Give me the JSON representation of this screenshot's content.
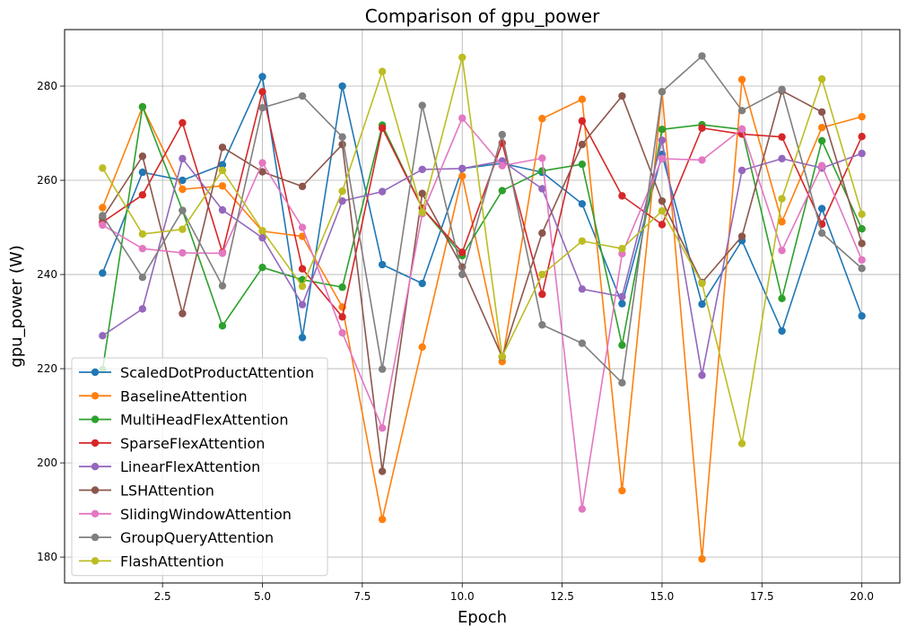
{
  "chart_data": {
    "type": "line",
    "title": "Comparison of gpu_power",
    "xlabel": "Epoch",
    "ylabel": "gpu_power (W)",
    "xlim": [
      0.05,
      20.95
    ],
    "ylim": [
      174.5,
      292
    ],
    "xticks": [
      "2.5",
      "5.0",
      "7.5",
      "10.0",
      "12.5",
      "15.0",
      "17.5",
      "20.0"
    ],
    "xtick_values": [
      2.5,
      5.0,
      7.5,
      10.0,
      12.5,
      15.0,
      17.5,
      20.0
    ],
    "yticks": [
      "180",
      "200",
      "220",
      "240",
      "260",
      "280"
    ],
    "ytick_values": [
      180,
      200,
      220,
      240,
      260,
      280
    ],
    "grid": true,
    "legend_position": "bottom-left",
    "x": [
      1,
      2,
      3,
      4,
      5,
      6,
      7,
      8,
      9,
      10,
      11,
      12,
      13,
      14,
      15,
      16,
      17,
      18,
      19,
      20
    ],
    "series": [
      {
        "name": "ScaledDotProductAttention",
        "color": "#1f77b4",
        "values": [
          240.3,
          261.7,
          260.0,
          263.3,
          282.0,
          226.6,
          280.0,
          242.1,
          238.1,
          262.5,
          263.6,
          261.7,
          255.0,
          233.8,
          265.5,
          233.7,
          247.2,
          228.0,
          254.0,
          231.2
        ]
      },
      {
        "name": "BaselineAttention",
        "color": "#ff7f0e",
        "values": [
          254.2,
          275.6,
          258.1,
          258.8,
          249.2,
          248.1,
          233.1,
          188.0,
          224.6,
          260.9,
          221.5,
          273.1,
          277.2,
          194.1,
          278.8,
          179.6,
          281.4,
          251.2,
          271.2,
          273.5
        ]
      },
      {
        "name": "MultiHeadFlexAttention",
        "color": "#2ca02c",
        "values": [
          219.8,
          275.6,
          253.6,
          229.1,
          241.5,
          238.9,
          237.3,
          271.7,
          254.1,
          244.0,
          257.8,
          262.0,
          263.4,
          225.0,
          270.8,
          271.8,
          270.8,
          234.9,
          268.4,
          249.7
        ]
      },
      {
        "name": "SparseFlexAttention",
        "color": "#d62728",
        "values": [
          251.1,
          256.9,
          272.2,
          244.7,
          278.8,
          241.2,
          231.0,
          271.1,
          254.1,
          244.7,
          267.9,
          235.8,
          272.6,
          256.7,
          250.6,
          271.1,
          269.8,
          269.2,
          250.7,
          269.3
        ]
      },
      {
        "name": "LinearFlexAttention",
        "color": "#9467bd",
        "values": [
          227.0,
          232.7,
          264.6,
          253.7,
          247.8,
          233.6,
          255.6,
          257.6,
          262.3,
          262.5,
          264.1,
          258.2,
          236.9,
          235.3,
          268.5,
          218.6,
          262.1,
          264.6,
          262.6,
          265.7
        ]
      },
      {
        "name": "LSHAttention",
        "color": "#8c564b",
        "values": [
          252.0,
          265.1,
          231.7,
          267.0,
          261.8,
          258.7,
          267.6,
          198.2,
          257.2,
          241.6,
          222.5,
          248.8,
          267.6,
          277.9,
          255.6,
          238.3,
          248.1,
          279.0,
          274.5,
          246.6
        ]
      },
      {
        "name": "SlidingWindowAttention",
        "color": "#e377c2",
        "values": [
          250.5,
          245.5,
          244.6,
          244.5,
          263.7,
          250.0,
          227.6,
          207.4,
          252.9,
          273.2,
          263.1,
          264.7,
          190.2,
          244.4,
          264.6,
          264.3,
          270.9,
          245.1,
          263.1,
          243.1
        ]
      },
      {
        "name": "GroupQueryAttention",
        "color": "#7f7f7f",
        "values": [
          252.5,
          239.4,
          253.6,
          237.6,
          275.4,
          277.9,
          269.2,
          219.9,
          275.9,
          240.0,
          269.7,
          229.3,
          225.4,
          217.0,
          278.8,
          286.4,
          274.8,
          279.3,
          248.8,
          241.3
        ]
      },
      {
        "name": "FlashAttention",
        "color": "#bcbd22",
        "values": [
          262.6,
          248.6,
          249.6,
          262.1,
          249.3,
          237.5,
          257.7,
          283.1,
          253.2,
          286.1,
          222.6,
          240.0,
          247.1,
          245.5,
          253.5,
          238.1,
          204.1,
          256.1,
          281.5,
          252.8
        ]
      }
    ]
  }
}
